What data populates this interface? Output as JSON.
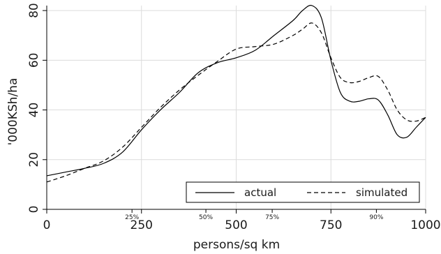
{
  "chart_data": {
    "type": "line",
    "title": "",
    "xlabel": "persons/sq km",
    "ylabel": "'000KSh/ha",
    "xlim": [
      0,
      1000
    ],
    "ylim": [
      0,
      82
    ],
    "x_ticks": [
      0,
      250,
      500,
      750,
      1000
    ],
    "y_ticks": [
      0,
      20,
      40,
      60,
      80
    ],
    "grid": true,
    "legend_position": "bottom-right",
    "percentile_markers": [
      {
        "label": "25%",
        "x": 225
      },
      {
        "label": "50%",
        "x": 420
      },
      {
        "label": "75%",
        "x": 595
      },
      {
        "label": "90%",
        "x": 870
      }
    ],
    "series": [
      {
        "name": "actual",
        "style": "solid",
        "x": [
          0,
          50,
          100,
          150,
          200,
          250,
          300,
          350,
          400,
          450,
          500,
          550,
          600,
          650,
          675,
          700,
          725,
          750,
          775,
          800,
          825,
          850,
          875,
          900,
          925,
          950,
          975,
          1000
        ],
        "y": [
          13.5,
          15,
          16.5,
          18.5,
          23,
          32,
          40,
          47,
          55,
          59,
          61,
          64,
          70,
          76,
          80,
          82,
          77,
          60,
          47,
          43.5,
          43.5,
          44.5,
          44,
          38,
          30,
          29,
          33,
          37
        ]
      },
      {
        "name": "simulated",
        "style": "dashed",
        "x": [
          0,
          50,
          100,
          150,
          200,
          250,
          300,
          350,
          400,
          450,
          500,
          550,
          600,
          650,
          675,
          700,
          725,
          750,
          775,
          800,
          825,
          850,
          875,
          900,
          925,
          950,
          975,
          1000
        ],
        "y": [
          11,
          13.5,
          16.5,
          19.5,
          25,
          33,
          41,
          48,
          54,
          59.5,
          64.5,
          65.5,
          66.5,
          70,
          72.5,
          75,
          71,
          61,
          53,
          51,
          51.5,
          53,
          53.5,
          48,
          40,
          36,
          35.5,
          37
        ]
      }
    ]
  }
}
